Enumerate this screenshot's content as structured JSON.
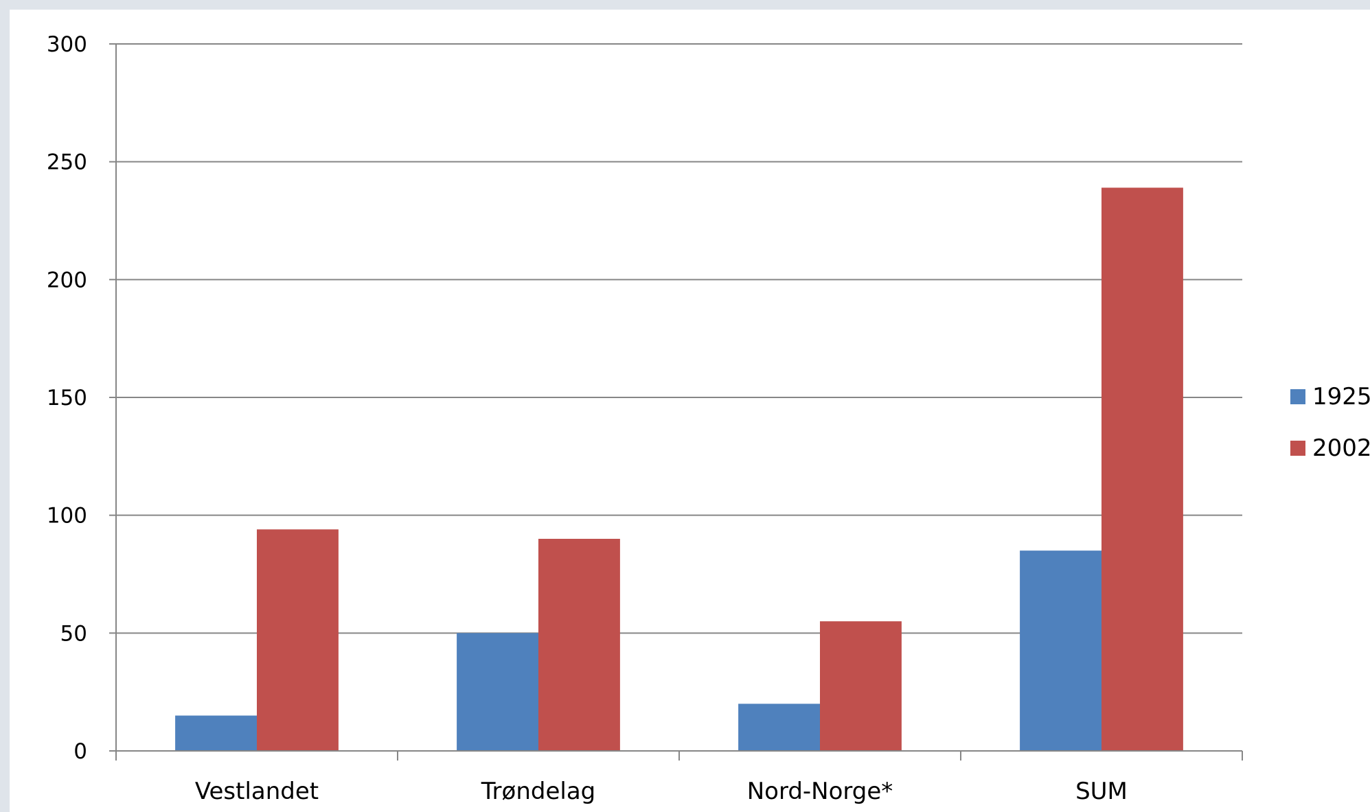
{
  "chart_data": {
    "type": "bar",
    "title": "",
    "xlabel": "",
    "ylabel": "",
    "categories": [
      "Vestlandet",
      "Trøndelag",
      "Nord-Norge*",
      "SUM"
    ],
    "series": [
      {
        "name": "1925",
        "color": "#4f81bd",
        "values": [
          15,
          50,
          20,
          85
        ]
      },
      {
        "name": "2002",
        "color": "#c0504d",
        "values": [
          94,
          90,
          55,
          239
        ]
      }
    ],
    "ylim": [
      0,
      300
    ],
    "yticks": [
      0,
      50,
      100,
      150,
      200,
      250,
      300
    ],
    "grid": true,
    "legend_position": "right"
  }
}
